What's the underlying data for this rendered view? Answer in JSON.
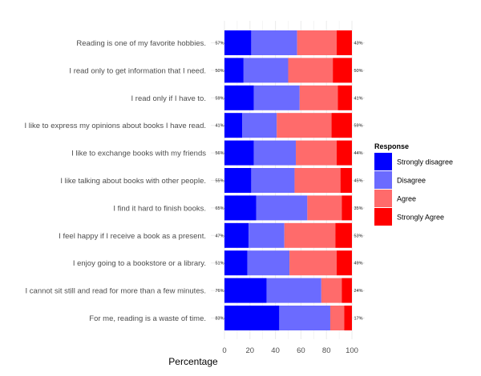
{
  "chart_data": {
    "type": "bar",
    "orientation": "horizontal",
    "stacked": true,
    "xlabel": "Percentage",
    "xlim": [
      0,
      100
    ],
    "xticks": [
      0,
      20,
      40,
      60,
      80,
      100
    ],
    "grid": true,
    "legend_position": "right",
    "legend_title": "Response",
    "categories": [
      "Reading is one of my favorite hobbies.",
      "I read only to get information that I need.",
      "I read only if I have to.",
      "I like to express my opinions about books I have read.",
      "I like to exchange books with my friends",
      "I like talking about books with other people.",
      "I find it hard to finish books.",
      "I feel happy if I receive a book as a present.",
      "I enjoy going to a bookstore or a library.",
      "I cannot sit still and read for more than a few minutes.",
      "For me, reading is a waste of time."
    ],
    "series": [
      {
        "name": "Strongly disagree",
        "color": "#0000FF",
        "values": [
          21,
          15,
          23,
          14,
          23,
          21,
          25,
          19,
          18,
          33,
          43
        ]
      },
      {
        "name": "Disagree",
        "color": "#6B6BFF",
        "values": [
          36,
          35,
          36,
          27,
          33,
          34,
          40,
          28,
          33,
          43,
          40
        ]
      },
      {
        "name": "Agree",
        "color": "#FF6B6B",
        "values": [
          31,
          35,
          30,
          43,
          32,
          36,
          27,
          40,
          37,
          16,
          11
        ]
      },
      {
        "name": "Strongly Agree",
        "color": "#FF0000",
        "values": [
          12,
          15,
          11,
          16,
          12,
          9,
          8,
          13,
          12,
          8,
          6
        ]
      }
    ],
    "left_labels": [
      "57%",
      "50%",
      "59%",
      "41%",
      "56%",
      "55%",
      "65%",
      "47%",
      "51%",
      "76%",
      "83%"
    ],
    "right_labels": [
      "43%",
      "50%",
      "41%",
      "59%",
      "44%",
      "45%",
      "35%",
      "53%",
      "49%",
      "24%",
      "17%"
    ]
  }
}
